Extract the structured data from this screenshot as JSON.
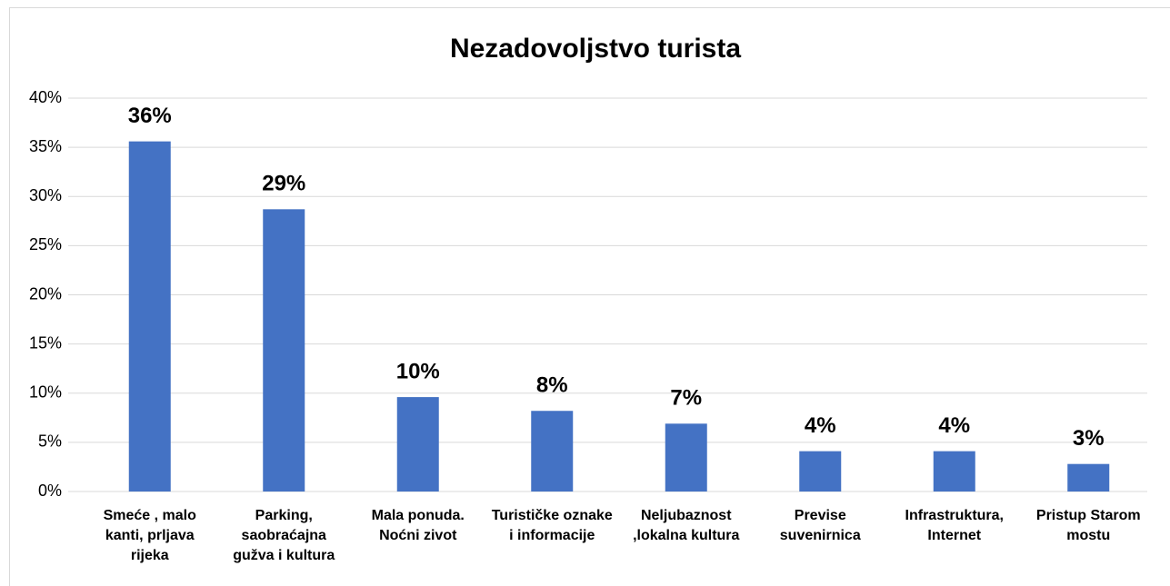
{
  "chart_data": {
    "type": "bar",
    "title": "Nezadovoljstvo turista",
    "categories": [
      "Smeće , malo kanti, prljava rijeka",
      "Parking, saobraćajna gužva i kultura",
      "Mala ponuda. Noćni zivot",
      "Turističke oznake i informacije",
      "Neljubaznost ,lokalna kultura",
      "Previse suvenirnica",
      "Infrastruktura, Internet",
      "Pristup Starom mostu"
    ],
    "values": [
      35.6,
      28.7,
      9.6,
      8.2,
      6.9,
      4.1,
      4.1,
      2.8
    ],
    "value_labels": [
      "36%",
      "29%",
      "10%",
      "8%",
      "7%",
      "4%",
      "4%",
      "3%"
    ],
    "color": "#4472c4",
    "ylim": [
      0,
      40
    ],
    "yticks": [
      {
        "value": 0,
        "label": "0%"
      },
      {
        "value": 5,
        "label": "5%"
      },
      {
        "value": 10,
        "label": "10%"
      },
      {
        "value": 15,
        "label": "15%"
      },
      {
        "value": 20,
        "label": "20%"
      },
      {
        "value": 25,
        "label": "25%"
      },
      {
        "value": 30,
        "label": "30%"
      },
      {
        "value": 35,
        "label": "35%"
      },
      {
        "value": 40,
        "label": "40%"
      }
    ],
    "grid": true
  }
}
